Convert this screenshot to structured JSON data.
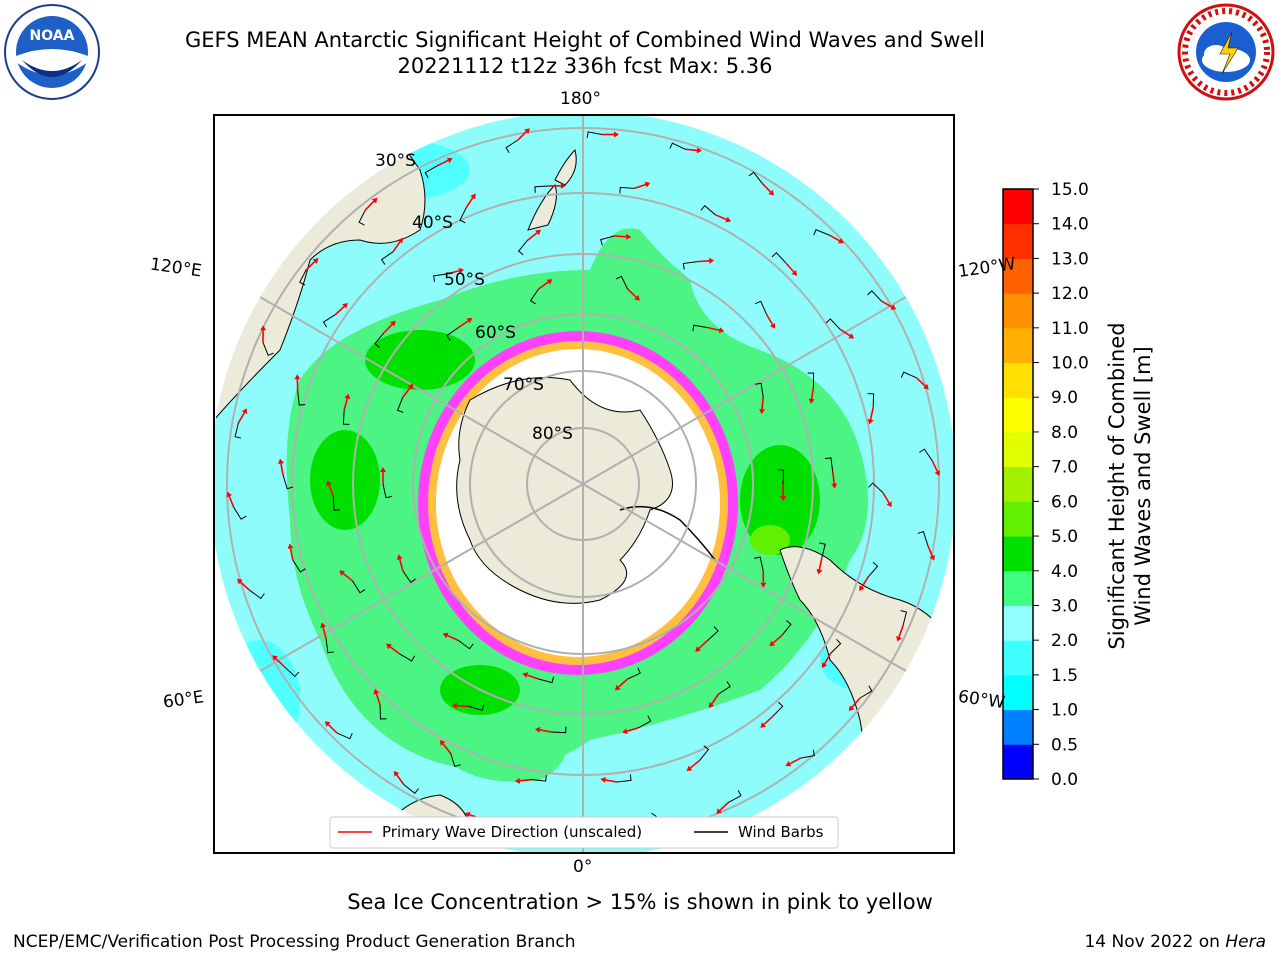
{
  "header": {
    "title_line1": "GEFS MEAN Antarctic Significant Height of Combined Wind Waves and Swell",
    "title_line2": "20221112 t12z 336h fcst   Max: 5.36"
  },
  "logos": {
    "left": "NOAA",
    "right": "NATIONAL WEATHER SERVICE"
  },
  "map": {
    "longitude_labels": {
      "top": "180°",
      "bottom": "0°",
      "upper_left": "120°E",
      "upper_right": "120°W",
      "lower_left": "60°E",
      "lower_right": "60°W"
    },
    "latitude_labels": [
      "30°S",
      "40°S",
      "50°S",
      "60°S",
      "70°S",
      "80°S"
    ],
    "legend": {
      "wave": "Primary Wave Direction (unscaled)",
      "barb": "Wind Barbs"
    },
    "colors": {
      "ocean_low": "#8ffcfc",
      "ocean_mid": "#4cf484",
      "ocean_high": "#00e000",
      "land": "#ecead8",
      "ice_pink": "#ff40ff",
      "ice_yellow": "#ffc040",
      "arrow": "#ff0000"
    }
  },
  "colorbar": {
    "label_line1": "Significant Height of Combined",
    "label_line2": "Wind Waves and Swell [m]",
    "ticks": [
      "0.0",
      "0.5",
      "1.0",
      "1.5",
      "2.0",
      "3.0",
      "4.0",
      "5.0",
      "6.0",
      "7.0",
      "8.0",
      "9.0",
      "10.0",
      "11.0",
      "12.0",
      "13.0",
      "14.0",
      "15.0"
    ],
    "colors": [
      "#0000ff",
      "#0080ff",
      "#00ffff",
      "#40ffff",
      "#90ffff",
      "#40ff80",
      "#00e000",
      "#60f000",
      "#a0f000",
      "#e0ff00",
      "#ffff00",
      "#ffe000",
      "#ffb000",
      "#ff9000",
      "#ff6000",
      "#ff3000",
      "#ff0000"
    ]
  },
  "footer": {
    "ice_note": "Sea Ice Concentration > 15% is shown in pink to yellow",
    "branch": "NCEP/EMC/Verification Post Processing Product Generation Branch",
    "date": "14 Nov 2022 on",
    "machine": "Hera"
  }
}
